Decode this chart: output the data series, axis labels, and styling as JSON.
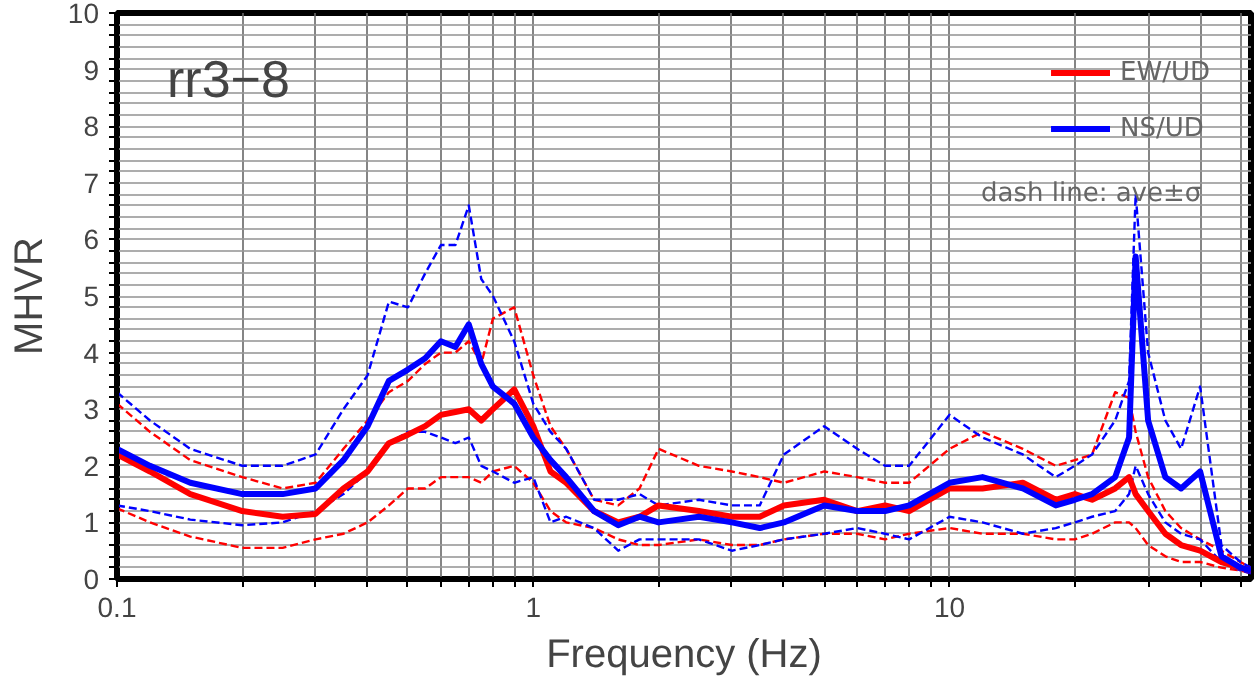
{
  "chart_data": {
    "type": "line",
    "title": "rr3−8",
    "xlabel": "Frequency (Hz)",
    "ylabel": "MHVR",
    "log": "x",
    "grid": true,
    "legend": "top right",
    "line_style": "solid",
    "annotations": [
      "dash line: ave±σ"
    ],
    "xlim": [
      0.1,
      53
    ],
    "ylim": [
      0,
      10
    ],
    "xticks": [
      0.1,
      {
        "value": 0.2,
        "label": null
      },
      {
        "value": 0.3,
        "label": null
      },
      {
        "value": 0.4,
        "label": null
      },
      {
        "value": 0.5,
        "label": null
      },
      {
        "value": 0.6,
        "label": null
      },
      {
        "value": 0.7,
        "label": null
      },
      {
        "value": 0.8,
        "label": null
      },
      {
        "value": 0.9,
        "label": null
      },
      1,
      {
        "value": 2,
        "label": null
      },
      {
        "value": 3,
        "label": null
      },
      {
        "value": 4,
        "label": null
      },
      {
        "value": 5,
        "label": null
      },
      {
        "value": 6,
        "label": null
      },
      {
        "value": 7,
        "label": null
      },
      {
        "value": 8,
        "label": null
      },
      {
        "value": 9,
        "label": null
      },
      10,
      {
        "value": 20,
        "label": null
      },
      {
        "value": 30,
        "label": null
      },
      {
        "value": 40,
        "label": null
      },
      {
        "value": 50,
        "label": null
      }
    ],
    "yticks": [
      0,
      {
        "value": 0.2,
        "label": null
      },
      {
        "value": 0.4,
        "label": null
      },
      {
        "value": 0.6,
        "label": null
      },
      {
        "value": 0.8,
        "label": null
      },
      1,
      {
        "value": 1.2,
        "label": null
      },
      {
        "value": 1.4,
        "label": null
      },
      {
        "value": 1.6,
        "label": null
      },
      {
        "value": 1.8,
        "label": null
      },
      2,
      {
        "value": 2.2,
        "label": null
      },
      {
        "value": 2.4,
        "label": null
      },
      {
        "value": 2.6,
        "label": null
      },
      {
        "value": 2.8,
        "label": null
      },
      3,
      {
        "value": 3.2,
        "label": null
      },
      {
        "value": 3.4,
        "label": null
      },
      {
        "value": 3.6,
        "label": null
      },
      {
        "value": 3.8,
        "label": null
      },
      4,
      {
        "value": 4.2,
        "label": null
      },
      {
        "value": 4.4,
        "label": null
      },
      {
        "value": 4.6,
        "label": null
      },
      {
        "value": 4.8,
        "label": null
      },
      5,
      {
        "value": 5.2,
        "label": null
      },
      {
        "value": 5.4,
        "label": null
      },
      {
        "value": 5.6,
        "label": null
      },
      {
        "value": 5.8,
        "label": null
      },
      6,
      {
        "value": 6.2,
        "label": null
      },
      {
        "value": 6.4,
        "label": null
      },
      {
        "value": 6.6,
        "label": null
      },
      {
        "value": 6.8,
        "label": null
      },
      7,
      {
        "value": 7.2,
        "label": null
      },
      {
        "value": 7.4,
        "label": null
      },
      {
        "value": 7.6,
        "label": null
      },
      {
        "value": 7.8,
        "label": null
      },
      8,
      {
        "value": 8.2,
        "label": null
      },
      {
        "value": 8.4,
        "label": null
      },
      {
        "value": 8.6,
        "label": null
      },
      {
        "value": 8.8,
        "label": null
      },
      9,
      {
        "value": 9.2,
        "label": null
      },
      {
        "value": 9.4,
        "label": null
      },
      {
        "value": 9.6,
        "label": null
      },
      {
        "value": 9.8,
        "label": null
      },
      10
    ],
    "x": [
      0.1,
      0.12,
      0.15,
      0.2,
      0.25,
      0.3,
      0.35,
      0.4,
      0.45,
      0.5,
      0.55,
      0.6,
      0.65,
      0.7,
      0.75,
      0.8,
      0.9,
      1.0,
      1.1,
      1.2,
      1.4,
      1.6,
      1.8,
      2,
      2.5,
      3,
      3.5,
      4,
      5,
      6,
      7,
      8,
      10,
      12,
      15,
      18,
      20,
      22,
      25,
      27,
      28,
      30,
      33,
      36,
      40,
      45,
      50,
      53
    ],
    "series": [
      {
        "color": "#ff0000",
        "line_style": "dashed",
        "values": [
          3.1,
          2.6,
          2.1,
          1.8,
          1.6,
          1.7,
          2.3,
          2.8,
          3.3,
          3.5,
          3.8,
          4.0,
          4.0,
          4.2,
          3.8,
          4.6,
          4.8,
          3.6,
          2.7,
          2.3,
          1.4,
          1.3,
          1.6,
          2.3,
          2.0,
          1.9,
          1.8,
          1.7,
          1.9,
          1.8,
          1.7,
          1.7,
          2.3,
          2.6,
          2.3,
          2.0,
          2.1,
          2.2,
          3.3,
          3.2,
          2.6,
          1.8,
          1.2,
          0.9,
          0.7,
          0.5,
          0.3,
          0.2
        ]
      },
      {
        "color": "#ff0000",
        "line_style": "dashed",
        "values": [
          1.25,
          1.0,
          0.75,
          0.55,
          0.55,
          0.7,
          0.8,
          1.0,
          1.3,
          1.6,
          1.6,
          1.8,
          1.8,
          1.8,
          1.7,
          1.9,
          2.0,
          1.7,
          1.2,
          1.0,
          0.9,
          0.7,
          0.6,
          0.6,
          0.7,
          0.6,
          0.6,
          0.7,
          0.8,
          0.8,
          0.7,
          0.8,
          0.9,
          0.8,
          0.8,
          0.7,
          0.7,
          0.8,
          1.0,
          1.0,
          0.9,
          0.6,
          0.4,
          0.3,
          0.3,
          0.2,
          0.15,
          0.1
        ]
      },
      {
        "color": "#0000ff",
        "line_style": "dashed",
        "values": [
          3.3,
          2.8,
          2.3,
          2.0,
          2.0,
          2.2,
          3.0,
          3.6,
          4.9,
          4.8,
          5.4,
          5.9,
          5.9,
          6.6,
          5.3,
          5.0,
          4.2,
          3.1,
          2.6,
          2.3,
          1.4,
          1.4,
          1.5,
          1.3,
          1.4,
          1.3,
          1.3,
          2.2,
          2.7,
          2.3,
          2.0,
          2.0,
          2.9,
          2.5,
          2.2,
          1.8,
          2.0,
          2.2,
          2.8,
          3.5,
          6.8,
          4.0,
          2.8,
          2.3,
          3.4,
          0.6,
          0.3,
          0.2
        ]
      },
      {
        "color": "#0000ff",
        "line_style": "dashed",
        "values": [
          1.3,
          1.2,
          1.05,
          0.95,
          1.0,
          1.2,
          1.5,
          1.9,
          2.4,
          2.6,
          2.6,
          2.5,
          2.4,
          2.5,
          2.0,
          1.9,
          1.7,
          1.8,
          1.0,
          1.1,
          0.9,
          0.5,
          0.7,
          0.7,
          0.7,
          0.5,
          0.6,
          0.7,
          0.8,
          0.9,
          0.8,
          0.7,
          1.1,
          1.0,
          0.8,
          0.9,
          1.0,
          1.1,
          1.2,
          1.5,
          2.0,
          1.5,
          1.0,
          0.8,
          0.7,
          0.3,
          0.15,
          0.1
        ]
      },
      {
        "name": "EW/UD",
        "color": "#ff0000",
        "values": [
          2.2,
          1.9,
          1.5,
          1.2,
          1.1,
          1.15,
          1.6,
          1.9,
          2.4,
          2.55,
          2.7,
          2.9,
          2.95,
          3.0,
          2.8,
          3.0,
          3.35,
          2.7,
          1.9,
          1.7,
          1.2,
          1.0,
          1.1,
          1.3,
          1.2,
          1.1,
          1.1,
          1.3,
          1.4,
          1.2,
          1.3,
          1.2,
          1.6,
          1.6,
          1.7,
          1.4,
          1.5,
          1.4,
          1.6,
          1.8,
          1.5,
          1.2,
          0.8,
          0.6,
          0.5,
          0.3,
          0.2,
          0.15
        ]
      },
      {
        "name": "NS/UD",
        "color": "#0000ff",
        "values": [
          2.3,
          2.0,
          1.7,
          1.5,
          1.5,
          1.6,
          2.1,
          2.7,
          3.5,
          3.7,
          3.9,
          4.2,
          4.1,
          4.5,
          3.8,
          3.4,
          3.1,
          2.5,
          2.1,
          1.8,
          1.2,
          0.95,
          1.1,
          1.0,
          1.1,
          1.0,
          0.9,
          1.0,
          1.3,
          1.2,
          1.2,
          1.3,
          1.7,
          1.8,
          1.6,
          1.3,
          1.4,
          1.5,
          1.8,
          2.5,
          5.7,
          2.8,
          1.8,
          1.6,
          1.9,
          0.4,
          0.2,
          0.15
        ]
      }
    ]
  }
}
